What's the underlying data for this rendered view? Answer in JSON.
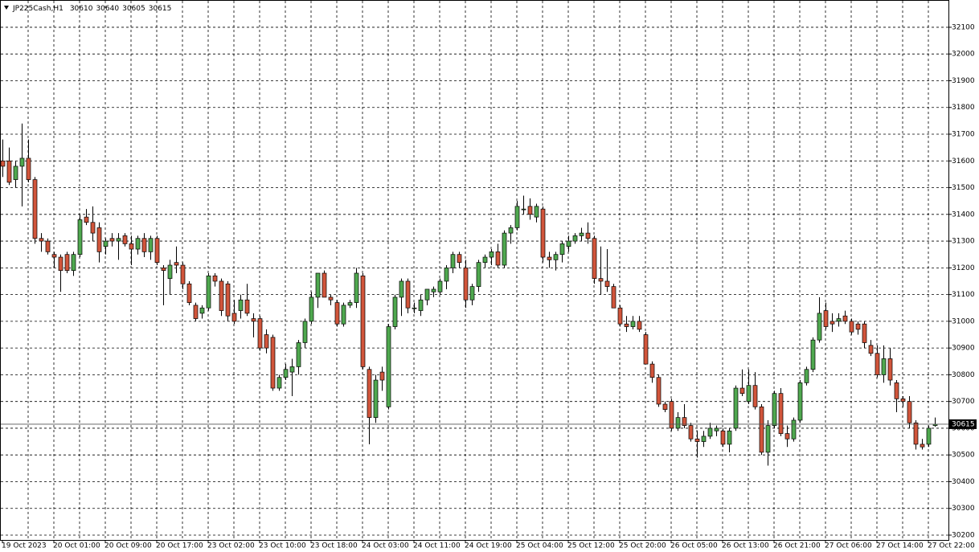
{
  "chart_data": {
    "type": "candlestick",
    "title": "JP225Cash,H1",
    "categories": [
      "19 Oct 2023",
      null,
      null,
      null,
      null,
      null,
      null,
      null,
      "20 Oct 01:00",
      null,
      null,
      null,
      null,
      null,
      null,
      null,
      "20 Oct 09:00",
      null,
      null,
      null,
      null,
      null,
      null,
      null,
      "20 Oct 17:00",
      null,
      null,
      null,
      null,
      null,
      null,
      null,
      "23 Oct 02:00",
      null,
      null,
      null,
      null,
      null,
      null,
      null,
      "23 Oct 10:00",
      null,
      null,
      null,
      null,
      null,
      null,
      null,
      "23 Oct 18:00",
      null,
      null,
      null,
      null,
      null,
      null,
      null,
      "24 Oct 03:00",
      null,
      null,
      null,
      null,
      null,
      null,
      null,
      "24 Oct 11:00",
      null,
      null,
      null,
      null,
      null,
      null,
      null,
      "24 Oct 19:00",
      null,
      null,
      null,
      null,
      null,
      null,
      null,
      "25 Oct 04:00",
      null,
      null,
      null,
      null,
      null,
      null,
      null,
      "25 Oct 12:00",
      null,
      null,
      null,
      null,
      null,
      null,
      null,
      "25 Oct 20:00",
      null,
      null,
      null,
      null,
      null,
      null,
      null,
      "26 Oct 05:00",
      null,
      null,
      null,
      null,
      null,
      null,
      null,
      "26 Oct 13:00",
      null,
      null,
      null,
      null,
      null,
      null,
      null,
      "26 Oct 21:00",
      null,
      null,
      null,
      null,
      null,
      null,
      null,
      "27 Oct 06:00",
      null,
      null,
      null,
      null,
      null,
      null,
      null,
      "27 Oct 14:00",
      null,
      null,
      null,
      null,
      null,
      null,
      null,
      "27 Oct 22:00",
      null
    ],
    "open": [
      31600,
      31600,
      31530,
      31580,
      31610,
      31530,
      31310,
      31300,
      31250,
      31240,
      31250,
      31190,
      31250,
      31390,
      31370,
      31350,
      31280,
      31310,
      31300,
      31320,
      31290,
      31270,
      31310,
      31260,
      31310,
      31200,
      31160,
      31220,
      31210,
      31140,
      31060,
      31030,
      31050,
      31170,
      31150,
      31140,
      31030,
      31040,
      31080,
      31010,
      31010,
      30950,
      30940,
      30750,
      30790,
      30810,
      30830,
      30920,
      31000,
      31090,
      31180,
      31090,
      31070,
      30990,
      31060,
      31070,
      31170,
      30820,
      30640,
      30810,
      30680,
      30980,
      31090,
      31150,
      31050,
      31040,
      31080,
      31110,
      31110,
      31150,
      31200,
      31250,
      31200,
      31080,
      31130,
      31220,
      31240,
      31260,
      31210,
      31330,
      31350,
      31420,
      31430,
      31390,
      31420,
      31240,
      31230,
      31250,
      31280,
      31300,
      31320,
      31330,
      31310,
      31160,
      31150,
      31130,
      31050,
      30990,
      30980,
      31000,
      30950,
      30840,
      30790,
      30690,
      30700,
      30600,
      30640,
      30610,
      30560,
      30550,
      30570,
      30590,
      30590,
      30540,
      30600,
      30750,
      30700,
      30760,
      30680,
      30510,
      30610,
      30730,
      30580,
      30560,
      30630,
      30770,
      30820,
      30930,
      31040,
      31000,
      31000,
      31020,
      31000,
      30990,
      30990,
      30910,
      30880,
      30800,
      30860,
      30770,
      30710,
      30700,
      30620,
      30540,
      30540,
      30610
    ],
    "high": [
      31680,
      31650,
      31600,
      31740,
      31680,
      31540,
      31330,
      31310,
      31260,
      31250,
      31260,
      31260,
      31400,
      31420,
      31430,
      31370,
      31310,
      31330,
      31330,
      31330,
      31320,
      31320,
      31330,
      31320,
      31320,
      31210,
      31230,
      31280,
      31220,
      31150,
      31070,
      31060,
      31180,
      31180,
      31160,
      31150,
      31080,
      31100,
      31140,
      31030,
      31020,
      30970,
      30950,
      30800,
      30840,
      30860,
      30930,
      31010,
      31110,
      31180,
      31190,
      31100,
      31080,
      31070,
      31080,
      31200,
      31180,
      30830,
      30800,
      30830,
      30990,
      31100,
      31160,
      31160,
      31070,
      31100,
      31120,
      31130,
      31160,
      31210,
      31260,
      31260,
      31230,
      31140,
      31230,
      31250,
      31270,
      31290,
      31340,
      31360,
      31450,
      31470,
      31460,
      31440,
      31430,
      31260,
      31260,
      31300,
      31320,
      31330,
      31350,
      31370,
      31320,
      31280,
      31270,
      31140,
      31060,
      31020,
      31020,
      31020,
      30960,
      30850,
      30800,
      30700,
      30710,
      30660,
      30690,
      30620,
      30590,
      30590,
      30620,
      30610,
      30600,
      30600,
      30760,
      30820,
      30820,
      30810,
      30690,
      30630,
      30740,
      30750,
      30610,
      30640,
      30780,
      30830,
      30940,
      31090,
      31070,
      31030,
      31030,
      31040,
      31010,
      31000,
      31000,
      30930,
      30910,
      30910,
      30900,
      30780,
      30720,
      30720,
      30630,
      30560,
      30610,
      30640
    ],
    "low": [
      31540,
      31510,
      31500,
      31430,
      31520,
      31290,
      31260,
      31250,
      31200,
      31110,
      31180,
      31170,
      31240,
      31360,
      31300,
      31220,
      31250,
      31280,
      31230,
      31280,
      31210,
      31250,
      31240,
      31230,
      31210,
      31060,
      31100,
      31180,
      31120,
      31060,
      31000,
      31010,
      31040,
      31130,
      31020,
      31000,
      30990,
      31010,
      31020,
      30940,
      30890,
      30880,
      30740,
      30740,
      30780,
      30720,
      30800,
      30900,
      30990,
      31050,
      31090,
      31060,
      30980,
      30980,
      31050,
      31050,
      30820,
      30540,
      30620,
      30740,
      30670,
      30970,
      31020,
      31030,
      31030,
      31020,
      31060,
      31090,
      31100,
      31120,
      31180,
      31200,
      31050,
      31060,
      31110,
      31200,
      31210,
      31200,
      31200,
      31290,
      31340,
      31400,
      31380,
      31370,
      31220,
      31200,
      31190,
      31220,
      31260,
      31290,
      31300,
      31290,
      31140,
      31100,
      31110,
      31050,
      30980,
      30960,
      30970,
      30960,
      30840,
      30770,
      30680,
      30660,
      30590,
      30590,
      30600,
      30550,
      30490,
      30530,
      30560,
      30570,
      30530,
      30510,
      30590,
      30720,
      30690,
      30670,
      30500,
      30460,
      30600,
      30570,
      30530,
      30550,
      30620,
      30760,
      30810,
      30920,
      30970,
      30960,
      30980,
      30990,
      30950,
      30950,
      30900,
      30870,
      30790,
      30770,
      30760,
      30660,
      30680,
      30600,
      30520,
      30520,
      30530,
      30605
    ],
    "close": [
      31580,
      31520,
      31580,
      31610,
      31530,
      31310,
      31300,
      31260,
      31240,
      31190,
      31190,
      31250,
      31380,
      31370,
      31330,
      31260,
      31300,
      31300,
      31310,
      31290,
      31270,
      31310,
      31260,
      31310,
      31220,
      31190,
      31210,
      31210,
      31140,
      31070,
      31010,
      31050,
      31170,
      31150,
      31040,
      31020,
      31000,
      31080,
      31030,
      31000,
      30900,
      30900,
      30750,
      30790,
      30820,
      30830,
      30920,
      31000,
      31090,
      31180,
      31090,
      31080,
      30990,
      31060,
      31070,
      31180,
      30830,
      30640,
      30780,
      30780,
      30980,
      31090,
      31150,
      31050,
      31050,
      31080,
      31120,
      31120,
      31150,
      31200,
      31250,
      31220,
      31080,
      31130,
      31220,
      31240,
      31260,
      31210,
      31330,
      31350,
      31430,
      31420,
      31400,
      31430,
      31240,
      31230,
      31250,
      31290,
      31300,
      31320,
      31330,
      31310,
      31160,
      31150,
      31130,
      31050,
      30990,
      30980,
      31000,
      30970,
      30840,
      30790,
      30690,
      30670,
      30600,
      30640,
      30610,
      30560,
      30550,
      30570,
      30600,
      30600,
      30540,
      30590,
      30750,
      30730,
      30760,
      30680,
      30510,
      30610,
      30730,
      30580,
      30560,
      30630,
      30770,
      30820,
      30930,
      31030,
      30980,
      30990,
      31010,
      31000,
      30960,
      30970,
      30920,
      30880,
      30800,
      30860,
      30780,
      30710,
      30700,
      30620,
      30540,
      30530,
      30600,
      30615
    ],
    "up_color": "#4fa84f",
    "down_color": "#d1553b",
    "ylim": [
      30182,
      32202
    ],
    "yticks": [
      30200,
      30300,
      30400,
      30500,
      30600,
      30700,
      30800,
      30900,
      31000,
      31100,
      31200,
      31300,
      31400,
      31500,
      31600,
      31700,
      31800,
      31900,
      32000,
      32100
    ],
    "grid": true
  }
}
